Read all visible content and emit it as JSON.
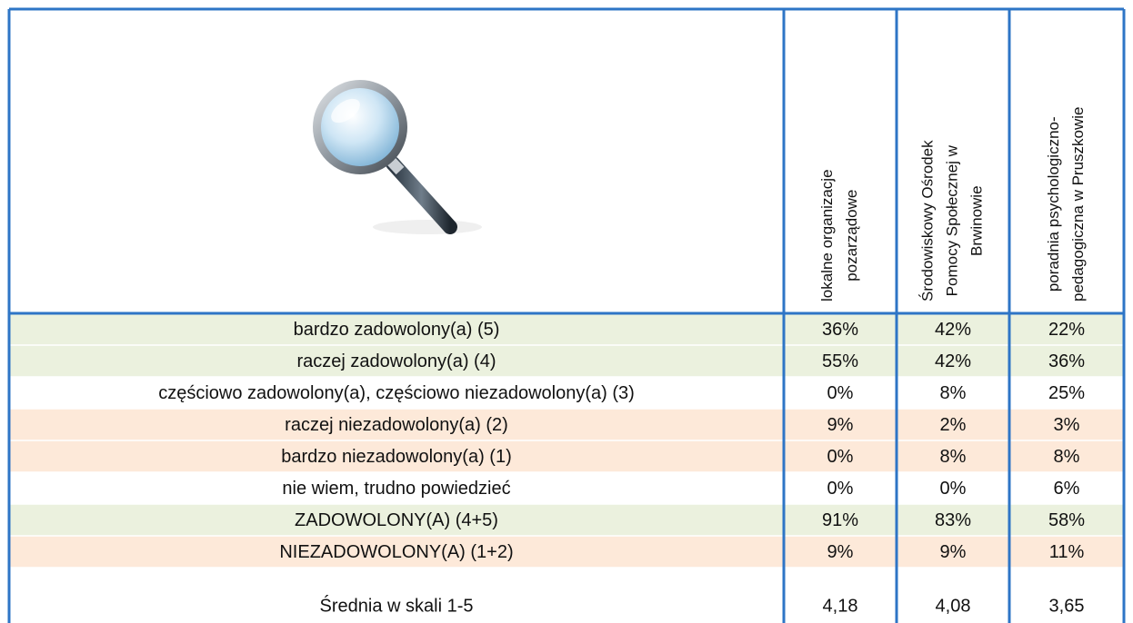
{
  "table": {
    "columns": [
      [
        "lokalne organizacje",
        "pozarządowe"
      ],
      [
        "Środowiskowy Ośrodek",
        "Pomocy Społecznej w",
        "Brwinowie"
      ],
      [
        "poradnia psychologiczno-",
        "pedagogiczna w Pruszkowie"
      ]
    ],
    "rows": [
      {
        "label": "bardzo zadowolony(a) (5)",
        "values": [
          "36%",
          "42%",
          "22%"
        ],
        "color": "#ebf1de"
      },
      {
        "label": "raczej zadowolony(a) (4)",
        "values": [
          "55%",
          "42%",
          "36%"
        ],
        "color": "#ebf1de"
      },
      {
        "label": "częściowo zadowolony(a), częściowo niezadowolony(a) (3)",
        "values": [
          "0%",
          "8%",
          "25%"
        ],
        "color": "#ffffff"
      },
      {
        "label": "raczej niezadowolony(a) (2)",
        "values": [
          "9%",
          "2%",
          "3%"
        ],
        "color": "#fde9d9"
      },
      {
        "label": "bardzo niezadowolony(a) (1)",
        "values": [
          "0%",
          "8%",
          "8%"
        ],
        "color": "#fde9d9"
      },
      {
        "label": "nie wiem, trudno powiedzieć",
        "values": [
          "0%",
          "0%",
          "6%"
        ],
        "color": "#ffffff"
      },
      {
        "label": "ZADOWOLONY(A) (4+5)",
        "values": [
          "91%",
          "83%",
          "58%"
        ],
        "color": "#ebf1de"
      },
      {
        "label": "NIEZADOWOLONY(A) (1+2)",
        "values": [
          "9%",
          "9%",
          "11%"
        ],
        "color": "#fde9d9"
      },
      {
        "label": "Średnia w skali 1-5",
        "values": [
          "4,18",
          "4,08",
          "3,65"
        ],
        "color": "#ffffff"
      }
    ]
  }
}
